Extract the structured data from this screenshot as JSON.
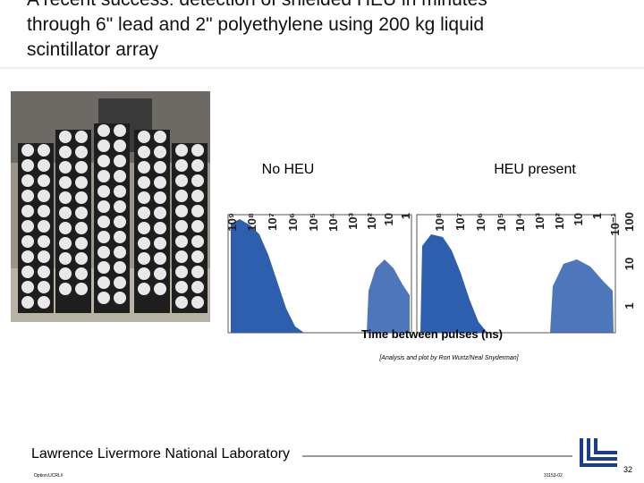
{
  "slide": {
    "title_lines": [
      "A recent success: detection of shielded HEU in minutes",
      "through 6\" lead and 2\" polyethylene using 200 kg liquid",
      "scintillator array"
    ],
    "plot": {
      "left_label": "No HEU",
      "right_label": "HEU present",
      "left_ticks": [
        "10⁹",
        "10⁸",
        "10⁷",
        "10⁶",
        "10⁵",
        "10⁴",
        "10³",
        "10²",
        "10",
        "1"
      ],
      "right_ticks": [
        "10⁸",
        "10⁷",
        "10⁶",
        "10⁵",
        "10⁴",
        "10³",
        "10²",
        "10",
        "1",
        "10⁻¹"
      ],
      "y_ticks": [
        "100",
        "10",
        "1"
      ],
      "x_label": "Time between pulses (ns)",
      "credit": "[Analysis and plot by Ron Wurtz/Neal Snyderman]"
    },
    "footer": {
      "lab": "Lawrence Livermore National Laboratory",
      "option": "Option:UCRL#",
      "code": "31153-02",
      "page": "32"
    }
  }
}
